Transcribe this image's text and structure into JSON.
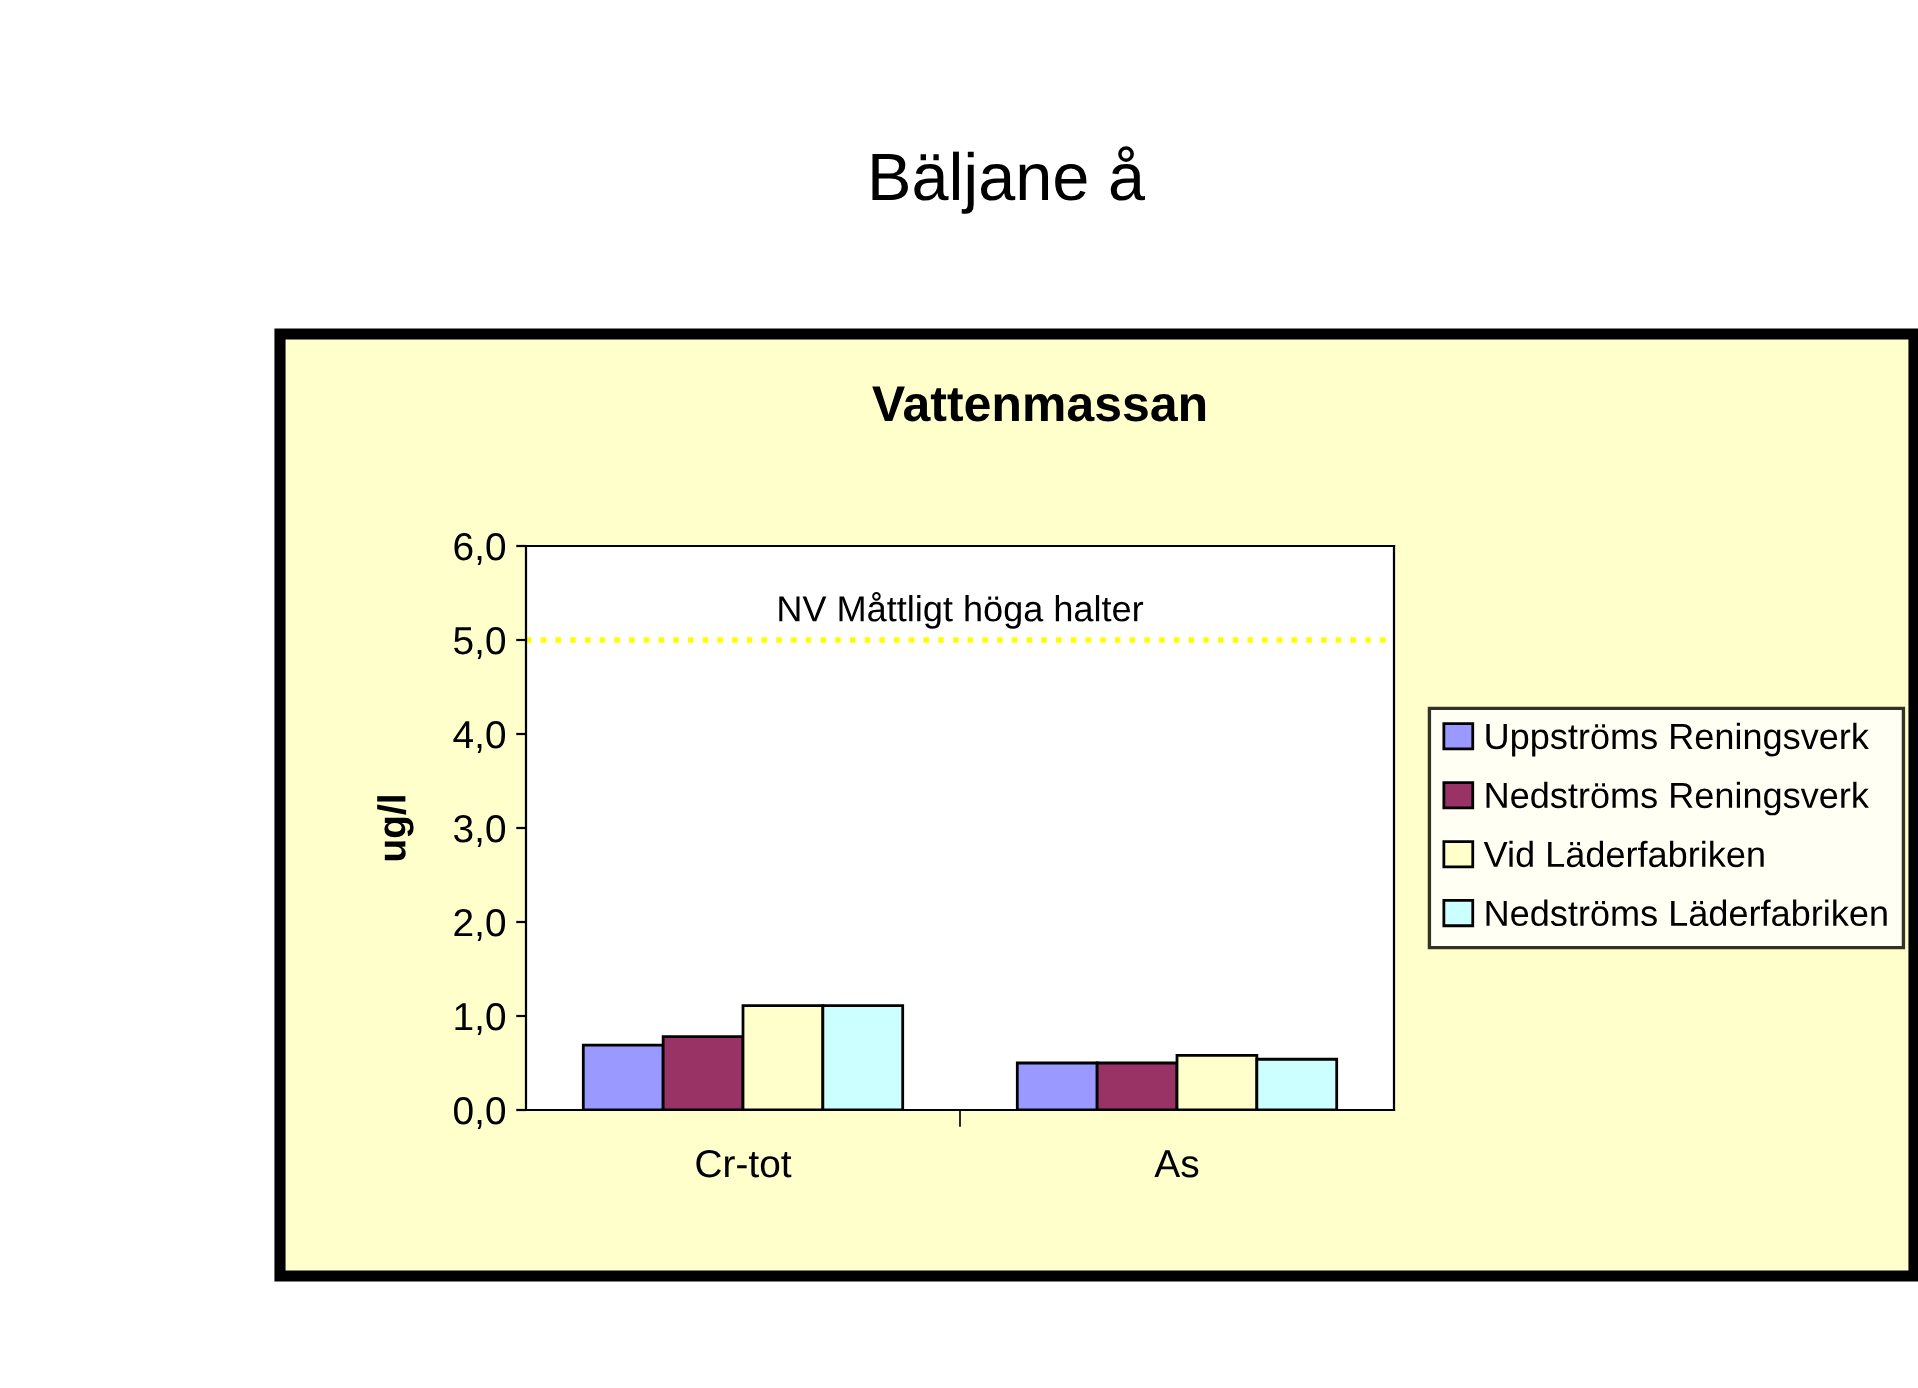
{
  "chart_data": {
    "type": "bar",
    "title": "Bäljane å",
    "subtitle": "Vattenmassan",
    "ylabel": "ug/l",
    "categories": [
      "Cr-tot",
      "As"
    ],
    "series": [
      {
        "name": "Uppströms Reningsverk",
        "color": "#9999ff",
        "values": [
          0.69,
          0.5
        ]
      },
      {
        "name": "Nedströms Reningsverk",
        "color": "#993366",
        "values": [
          0.78,
          0.5
        ]
      },
      {
        "name": "Vid Läderfabriken",
        "color": "#ffffcc",
        "values": [
          1.11,
          0.58
        ]
      },
      {
        "name": "Nedströms Läderfabriken",
        "color": "#ccffff",
        "values": [
          1.11,
          0.54
        ]
      }
    ],
    "ylim": [
      0,
      6
    ],
    "yticks": [
      {
        "value": 0,
        "label": "0,0"
      },
      {
        "value": 1,
        "label": "1,0"
      },
      {
        "value": 2,
        "label": "2,0"
      },
      {
        "value": 3,
        "label": "3,0"
      },
      {
        "value": 4,
        "label": "4,0"
      },
      {
        "value": 5,
        "label": "5,0"
      },
      {
        "value": 6,
        "label": "6,0"
      }
    ],
    "ref_lines": [
      {
        "axis": "y",
        "value": 5,
        "label": "NV Måttligt höga halter",
        "color": "#ffff00",
        "line_style": "dotted"
      }
    ],
    "grid": false,
    "legend": "right"
  }
}
